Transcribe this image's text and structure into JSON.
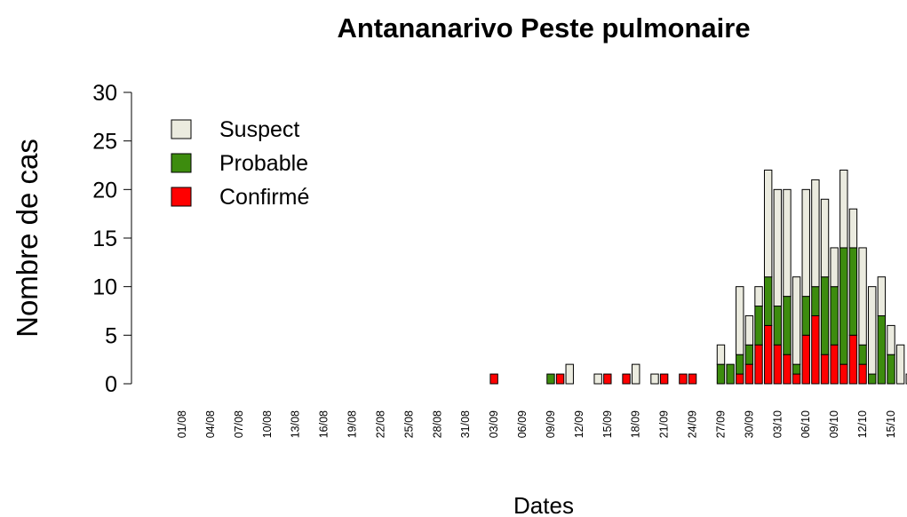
{
  "chart_data": {
    "type": "stacked_bar",
    "title": "Antananarivo Peste pulmonaire",
    "xlabel": "Dates",
    "ylabel": "Nombre de cas",
    "categories": [
      "01/08",
      null,
      null,
      "04/08",
      null,
      null,
      "07/08",
      null,
      null,
      "10/08",
      null,
      null,
      "13/08",
      null,
      null,
      "16/08",
      null,
      null,
      "19/08",
      null,
      null,
      "22/08",
      null,
      null,
      "25/08",
      null,
      null,
      "28/08",
      null,
      null,
      "31/08",
      null,
      null,
      "03/09",
      null,
      null,
      "06/09",
      null,
      null,
      "09/09",
      null,
      null,
      "12/09",
      null,
      null,
      "15/09",
      null,
      null,
      "18/09",
      null,
      null,
      "21/09",
      null,
      null,
      "24/09",
      null,
      null,
      "27/09",
      null,
      null,
      "30/09",
      null,
      null,
      "03/10",
      null,
      null,
      "06/10",
      null,
      null,
      "09/10",
      null,
      null,
      "12/10",
      null,
      null,
      "15/10",
      null,
      null
    ],
    "series": [
      {
        "name": "Confirmé",
        "color": "#ff0000",
        "values": [
          0,
          0,
          0,
          0,
          0,
          0,
          0,
          0,
          0,
          0,
          0,
          0,
          0,
          0,
          0,
          0,
          0,
          0,
          0,
          0,
          0,
          0,
          0,
          0,
          0,
          0,
          0,
          0,
          0,
          0,
          0,
          0,
          0,
          1,
          0,
          0,
          0,
          0,
          0,
          0,
          1,
          0,
          0,
          0,
          0,
          1,
          0,
          1,
          0,
          0,
          0,
          1,
          0,
          1,
          1,
          0,
          0,
          0,
          0,
          1,
          2,
          4,
          6,
          4,
          3,
          1,
          5,
          7,
          3,
          4,
          2,
          5,
          2,
          0,
          0,
          0,
          0,
          0
        ]
      },
      {
        "name": "Probable",
        "color": "#3d8c0e",
        "values": [
          0,
          0,
          0,
          0,
          0,
          0,
          0,
          0,
          0,
          0,
          0,
          0,
          0,
          0,
          0,
          0,
          0,
          0,
          0,
          0,
          0,
          0,
          0,
          0,
          0,
          0,
          0,
          0,
          0,
          0,
          0,
          0,
          0,
          0,
          0,
          0,
          0,
          0,
          0,
          1,
          0,
          0,
          0,
          0,
          0,
          0,
          0,
          0,
          0,
          0,
          0,
          0,
          0,
          0,
          0,
          0,
          0,
          2,
          2,
          2,
          2,
          4,
          5,
          4,
          6,
          1,
          4,
          3,
          8,
          6,
          12,
          9,
          2,
          1,
          7,
          3,
          0,
          0
        ]
      },
      {
        "name": "Suspect",
        "color": "#ebebdf",
        "values": [
          0,
          0,
          0,
          0,
          0,
          0,
          0,
          0,
          0,
          0,
          0,
          0,
          0,
          0,
          0,
          0,
          0,
          0,
          0,
          0,
          0,
          0,
          0,
          0,
          0,
          0,
          0,
          0,
          0,
          0,
          0,
          0,
          0,
          0,
          0,
          0,
          0,
          0,
          0,
          0,
          0,
          2,
          0,
          0,
          1,
          0,
          0,
          0,
          2,
          0,
          1,
          0,
          0,
          0,
          0,
          0,
          0,
          2,
          0,
          7,
          3,
          2,
          11,
          12,
          11,
          9,
          11,
          11,
          8,
          4,
          8,
          4,
          10,
          9,
          4,
          3,
          4,
          1
        ]
      }
    ],
    "ylim": [
      0,
      30
    ],
    "yticks": [
      0,
      5,
      10,
      15,
      20,
      25,
      30
    ],
    "legend": "top-left"
  }
}
